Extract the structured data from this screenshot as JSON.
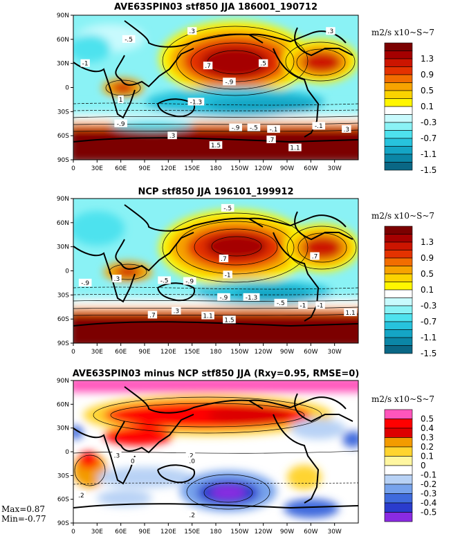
{
  "chart_data": [
    {
      "type": "heatmap",
      "title": "AVE63SPIN03 stf850 JJA 186001_190712",
      "unit_label": "m2/s x10~S~7",
      "x_ticks": [
        "0",
        "30E",
        "60E",
        "90E",
        "120E",
        "150E",
        "180",
        "150W",
        "120W",
        "90W",
        "60W",
        "30W"
      ],
      "y_ticks": [
        "90N",
        "60N",
        "30N",
        "0",
        "30S",
        "60S",
        "90S"
      ],
      "xlim": [
        0,
        360
      ],
      "ylim": [
        -90,
        90
      ],
      "colorbar_labels": [
        "1.3",
        "0.9",
        "0.5",
        "0.1",
        "-0.3",
        "-0.7",
        "-1.1",
        "-1.5"
      ],
      "colors": [
        "#7b0000",
        "#a50000",
        "#cc1500",
        "#e43200",
        "#f26d00",
        "#f7a300",
        "#fbd300",
        "#fff600",
        "#ffffff",
        "#c8fafd",
        "#8af2f5",
        "#4ee2ee",
        "#27c3dd",
        "#14a5c5",
        "#0b86a6",
        "#0a6785"
      ],
      "contour_labels": [
        {
          "text": "-.5",
          "lon": 70,
          "lat": 60
        },
        {
          "text": "-1",
          "lon": 15,
          "lat": 30
        },
        {
          "text": ".3",
          "lon": 150,
          "lat": 70
        },
        {
          "text": ".7",
          "lon": 170,
          "lat": 27
        },
        {
          "text": ".5",
          "lon": 240,
          "lat": 30
        },
        {
          "text": ".3",
          "lon": 325,
          "lat": 70
        },
        {
          "text": "1",
          "lon": 60,
          "lat": -15
        },
        {
          "text": "-.9",
          "lon": 60,
          "lat": -45
        },
        {
          "text": "-.9",
          "lon": 197,
          "lat": 7
        },
        {
          "text": "-1.3",
          "lon": 155,
          "lat": -18
        },
        {
          "text": ".3",
          "lon": 125,
          "lat": -60
        },
        {
          "text": "-.9",
          "lon": 205,
          "lat": -50
        },
        {
          "text": "-.5",
          "lon": 228,
          "lat": -50
        },
        {
          "text": "-.1",
          "lon": 253,
          "lat": -52
        },
        {
          "text": ".7",
          "lon": 250,
          "lat": -65
        },
        {
          "text": "1.5",
          "lon": 180,
          "lat": -72
        },
        {
          "text": "1.1",
          "lon": 280,
          "lat": -75
        },
        {
          "text": "-.1",
          "lon": 310,
          "lat": -48
        },
        {
          "text": ".3",
          "lon": 345,
          "lat": -52
        }
      ]
    },
    {
      "type": "heatmap",
      "title": "NCP stf850 JJA 196101_199912",
      "unit_label": "m2/s x10~S~7",
      "x_ticks": [
        "0",
        "30E",
        "60E",
        "90E",
        "120E",
        "150E",
        "180",
        "150W",
        "120W",
        "90W",
        "60W",
        "30W"
      ],
      "y_ticks": [
        "90N",
        "60N",
        "30N",
        "0",
        "30S",
        "60S",
        "90S"
      ],
      "xlim": [
        0,
        360
      ],
      "ylim": [
        -90,
        90
      ],
      "colorbar_labels": [
        "1.3",
        "0.9",
        "0.5",
        "0.1",
        "-0.3",
        "-0.7",
        "-1.1",
        "-1.5"
      ],
      "colors": [
        "#7b0000",
        "#a50000",
        "#cc1500",
        "#e43200",
        "#f26d00",
        "#f7a300",
        "#fbd300",
        "#fff600",
        "#ffffff",
        "#c8fafd",
        "#8af2f5",
        "#4ee2ee",
        "#27c3dd",
        "#14a5c5",
        "#0b86a6",
        "#0a6785"
      ],
      "contour_labels": [
        {
          "text": "-.5",
          "lon": 195,
          "lat": 78
        },
        {
          "text": ".7",
          "lon": 190,
          "lat": 15
        },
        {
          "text": ".7",
          "lon": 305,
          "lat": 18
        },
        {
          "text": "-.9",
          "lon": 15,
          "lat": -15
        },
        {
          "text": ".3",
          "lon": 55,
          "lat": -10
        },
        {
          "text": "-.5",
          "lon": 115,
          "lat": -12
        },
        {
          "text": "-.9",
          "lon": 147,
          "lat": -13
        },
        {
          "text": "-1",
          "lon": 195,
          "lat": -5
        },
        {
          "text": "-.9",
          "lon": 190,
          "lat": -33
        },
        {
          "text": "-1.3",
          "lon": 225,
          "lat": -33
        },
        {
          "text": "-.5",
          "lon": 262,
          "lat": -40
        },
        {
          "text": "-1",
          "lon": 290,
          "lat": -43
        },
        {
          "text": "-1",
          "lon": 312,
          "lat": -43
        },
        {
          "text": "1.1",
          "lon": 350,
          "lat": -52
        },
        {
          "text": ".7",
          "lon": 100,
          "lat": -55
        },
        {
          "text": ".3",
          "lon": 130,
          "lat": -50
        },
        {
          "text": "1.1",
          "lon": 170,
          "lat": -56
        },
        {
          "text": "1.5",
          "lon": 197,
          "lat": -61
        }
      ]
    },
    {
      "type": "heatmap",
      "title": "AVE63SPIN03 minus NCP stf850 JJA (Rxy=0.95, RMSE=0)",
      "unit_label": "m2/s x10~S~7",
      "x_ticks": [
        "0",
        "30E",
        "60E",
        "90E",
        "120E",
        "150E",
        "180",
        "150W",
        "120W",
        "90W",
        "60W",
        "30W"
      ],
      "y_ticks": [
        "90N",
        "60N",
        "30N",
        "0",
        "30S",
        "60S",
        "90S"
      ],
      "xlim": [
        0,
        360
      ],
      "ylim": [
        -90,
        90
      ],
      "colorbar_labels": [
        "0.5",
        "0.4",
        "0.3",
        "0.2",
        "0.1",
        "0",
        "-0.1",
        "-0.2",
        "-0.3",
        "-0.4",
        "-0.5"
      ],
      "colors": [
        "#ff55bb",
        "#ff0000",
        "#dd0000",
        "#f39b00",
        "#ffd430",
        "#fff6a0",
        "#ffffff",
        "#b8d2f5",
        "#77a3ec",
        "#3f6bdd",
        "#2a3ccd",
        "#8a2be2"
      ],
      "contour_labels": [
        {
          "text": ".2",
          "lon": 148,
          "lat": -5
        },
        {
          "text": ".0",
          "lon": 150,
          "lat": -12
        },
        {
          "text": ".3",
          "lon": 55,
          "lat": -5
        },
        {
          "text": "0",
          "lon": 75,
          "lat": -12
        },
        {
          "text": ".2",
          "lon": 10,
          "lat": -55
        },
        {
          "text": ".2",
          "lon": 150,
          "lat": -80
        }
      ],
      "stats": {
        "max": "Max=0.87",
        "min": "Min=-0.77"
      }
    }
  ]
}
